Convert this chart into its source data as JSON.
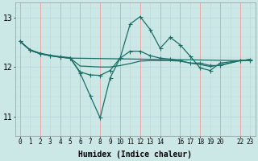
{
  "xlabel": "Humidex (Indice chaleur)",
  "bg_color": "#cce8e6",
  "line_color": "#1a6e66",
  "grid_minor_color": "#b8dbd8",
  "grid_major_color": "#f0a0a0",
  "xlim": [
    -0.5,
    23.5
  ],
  "ylim": [
    10.6,
    13.3
  ],
  "yticks": [
    11,
    12,
    13
  ],
  "xtick_positions": [
    0,
    1,
    2,
    3,
    4,
    5,
    6,
    7,
    8,
    9,
    10,
    11,
    12,
    13,
    14,
    16,
    17,
    18,
    19,
    20,
    22,
    23
  ],
  "xtick_labels": [
    "0",
    "1",
    "2",
    "3",
    "4",
    "5",
    "6",
    "7",
    "8",
    "9",
    "10",
    "11",
    "12",
    "13",
    "14",
    "16",
    "17",
    "18",
    "19",
    "20",
    "22",
    "23"
  ],
  "series_dip_x": [
    0,
    1,
    2,
    3,
    4,
    5,
    6,
    7,
    8,
    9,
    10,
    11,
    12,
    13,
    14,
    15,
    16,
    17,
    18,
    19,
    20,
    22,
    23
  ],
  "series_dip_y": [
    12.52,
    12.35,
    12.28,
    12.24,
    12.21,
    12.19,
    11.88,
    11.42,
    10.97,
    11.78,
    12.18,
    12.87,
    13.02,
    12.76,
    12.38,
    12.6,
    12.45,
    12.22,
    11.98,
    11.93,
    12.08,
    12.13,
    12.15
  ],
  "series_flat1_x": [
    0,
    1,
    2,
    3,
    4,
    5,
    6,
    7,
    8,
    9,
    10,
    11,
    12,
    13,
    14,
    15,
    16,
    17,
    18,
    19,
    20,
    22,
    23
  ],
  "series_flat1_y": [
    12.52,
    12.34,
    12.27,
    12.23,
    12.2,
    12.18,
    11.9,
    11.84,
    11.83,
    11.93,
    12.18,
    12.32,
    12.32,
    12.23,
    12.18,
    12.16,
    12.13,
    12.08,
    12.08,
    12.03,
    12.03,
    12.13,
    12.13
  ],
  "series_flat2_x": [
    0,
    1,
    2,
    3,
    4,
    5,
    6,
    7,
    8,
    9,
    10,
    11,
    12,
    13,
    14,
    15,
    16,
    17,
    18,
    19,
    20,
    22,
    23
  ],
  "series_flat2_y": [
    12.52,
    12.34,
    12.27,
    12.23,
    12.2,
    12.18,
    12.02,
    12.01,
    12.0,
    12.0,
    12.03,
    12.07,
    12.12,
    12.13,
    12.13,
    12.13,
    12.12,
    12.08,
    12.05,
    12.01,
    12.04,
    12.13,
    12.15
  ],
  "series_top_x": [
    0,
    1,
    2,
    3,
    4,
    5,
    22,
    23
  ],
  "series_top_y": [
    12.52,
    12.34,
    12.27,
    12.23,
    12.2,
    12.18,
    12.13,
    12.15
  ]
}
